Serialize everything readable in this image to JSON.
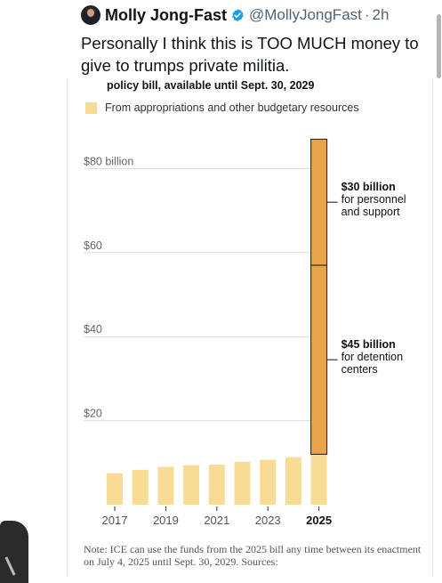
{
  "tweet": {
    "author_name": "Molly Jong-Fast",
    "handle": "@MollyJongFast",
    "separator": "·",
    "time": "2h",
    "text": "Personally I think this is TOO MUCH money to give to trumps private militia."
  },
  "card": {
    "title": "policy bill, available until Sept. 30, 2029",
    "legend_label": "From appropriations and other budgetary resources",
    "note": "Note: ICE can use the funds from the 2025 bill any time between its enactment on July 4, 2025 until Sept. 30, 2029. Sources:"
  },
  "colors": {
    "appropriations": "#f8dc96",
    "bill": "#e8a34b",
    "bill_stroke": "#1a1a1a",
    "verified": "#1d9bf0"
  },
  "icons": {
    "verified": "verified-badge-icon",
    "avatar": "avatar"
  },
  "chart_data": {
    "type": "bar",
    "categories": [
      "2017",
      "2018",
      "2019",
      "2020",
      "2021",
      "2022",
      "2023",
      "2024",
      "2025"
    ],
    "x_tick_labels": [
      "2017",
      "",
      "2019",
      "",
      "2021",
      "",
      "2023",
      "",
      "2025"
    ],
    "series": [
      {
        "name": "From appropriations and other budgetary resources",
        "values": [
          7.5,
          8.3,
          9.0,
          9.4,
          9.5,
          10.2,
          10.7,
          11.3,
          12.0
        ]
      },
      {
        "values": [
          0,
          0,
          0,
          0,
          0,
          0,
          0,
          0,
          45
        ]
      },
      {
        "values": [
          0,
          0,
          0,
          0,
          0,
          0,
          0,
          0,
          30
        ]
      }
    ],
    "y_ticks": [
      {
        "value": 20,
        "label": "$20"
      },
      {
        "value": 40,
        "label": "$40"
      },
      {
        "value": 60,
        "label": "$60"
      },
      {
        "value": 80,
        "label": "$80 billion"
      }
    ],
    "ylim": [
      0,
      87
    ],
    "annotations": [
      {
        "bold": "$30 billion",
        "lines": [
          "for personnel",
          "and support"
        ]
      },
      {
        "bold": "$45 billion",
        "lines": [
          "for detention",
          "centers"
        ]
      }
    ],
    "highlight_category": "2025",
    "grid": true
  }
}
